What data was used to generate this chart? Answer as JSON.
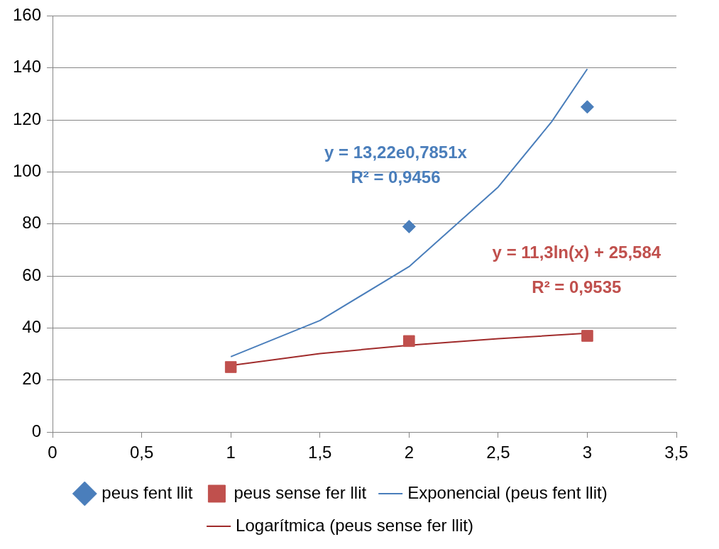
{
  "chart_data": {
    "type": "scatter",
    "xlim": [
      0,
      3.5
    ],
    "ylim": [
      0,
      160
    ],
    "xticks": [
      0,
      {
        "value": 0.5,
        "label": "0,5"
      },
      1,
      {
        "value": 1.5,
        "label": "1,5"
      },
      2,
      {
        "value": 2.5,
        "label": "2,5"
      },
      3,
      {
        "value": 3.5,
        "label": "3,5"
      }
    ],
    "yticks": [
      0,
      20,
      40,
      60,
      80,
      100,
      120,
      140,
      160
    ],
    "grid": "y",
    "legend": "bottom",
    "series": [
      {
        "name": "peus fent llit",
        "marker": "diamond",
        "color": "#4a7ebb",
        "x": [
          2,
          3
        ],
        "values": [
          79,
          125
        ]
      },
      {
        "name": "peus sense fer llit",
        "marker": "square",
        "color": "#c0504d",
        "x": [
          1,
          2,
          3
        ],
        "values": [
          25,
          35,
          37
        ]
      },
      {
        "name": "Exponencial (peus fent llit)",
        "type": "line",
        "marker": "none",
        "color": "#4a7ebb",
        "x": [
          1,
          1.5,
          2,
          2.5,
          2.8,
          3
        ],
        "values": [
          29,
          42.9,
          63.6,
          94.2,
          119.3,
          139.6
        ]
      },
      {
        "name": "Logarítmica (peus sense fer llit)",
        "type": "line",
        "marker": "none",
        "color": "#a02b2b",
        "x": [
          1,
          1.5,
          2,
          2.5,
          3
        ],
        "values": [
          25.6,
          30.2,
          33.4,
          35.9,
          38
        ]
      }
    ],
    "annotations": [
      "y = 13,22e0,7851x",
      "R² = 0,9456",
      "y = 11,3ln(x) + 25,584",
      "R² = 0,9535"
    ]
  }
}
